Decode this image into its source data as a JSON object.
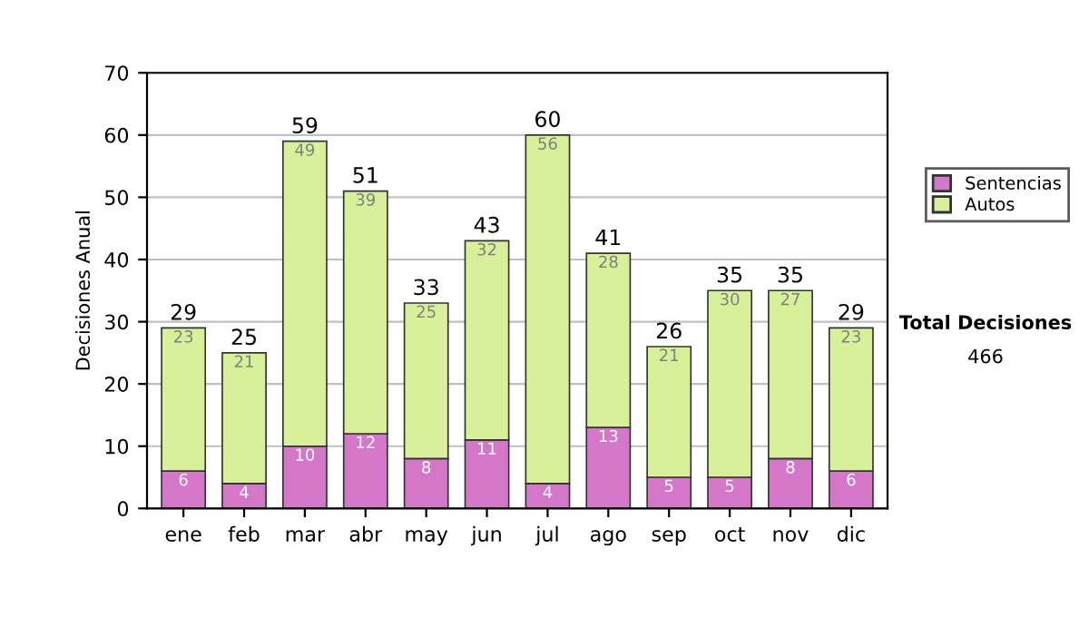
{
  "chart_data": {
    "type": "bar",
    "stacked": true,
    "ylabel": "Decisiones Anual",
    "categories": [
      "ene",
      "feb",
      "mar",
      "abr",
      "may",
      "jun",
      "jul",
      "ago",
      "sep",
      "oct",
      "nov",
      "dic"
    ],
    "series": [
      {
        "name": "Sentencias",
        "color": "#d477c8",
        "values": [
          6,
          4,
          10,
          12,
          8,
          11,
          4,
          13,
          5,
          5,
          8,
          6
        ]
      },
      {
        "name": "Autos",
        "color": "#d9f09a",
        "values": [
          23,
          21,
          49,
          39,
          25,
          32,
          56,
          28,
          21,
          30,
          27,
          23
        ]
      }
    ],
    "data_labels": true,
    "totals": [
      "29",
      "25",
      "59",
      "51",
      "33",
      "43",
      "60",
      "41",
      "26",
      "35",
      "35",
      "29"
    ],
    "ylim": [
      0,
      70
    ],
    "yticks": [
      0,
      10,
      20,
      30,
      40,
      50,
      60,
      70
    ],
    "grid": "y",
    "legend": "right",
    "annotations": [
      "Total Decisiones",
      "466"
    ]
  }
}
